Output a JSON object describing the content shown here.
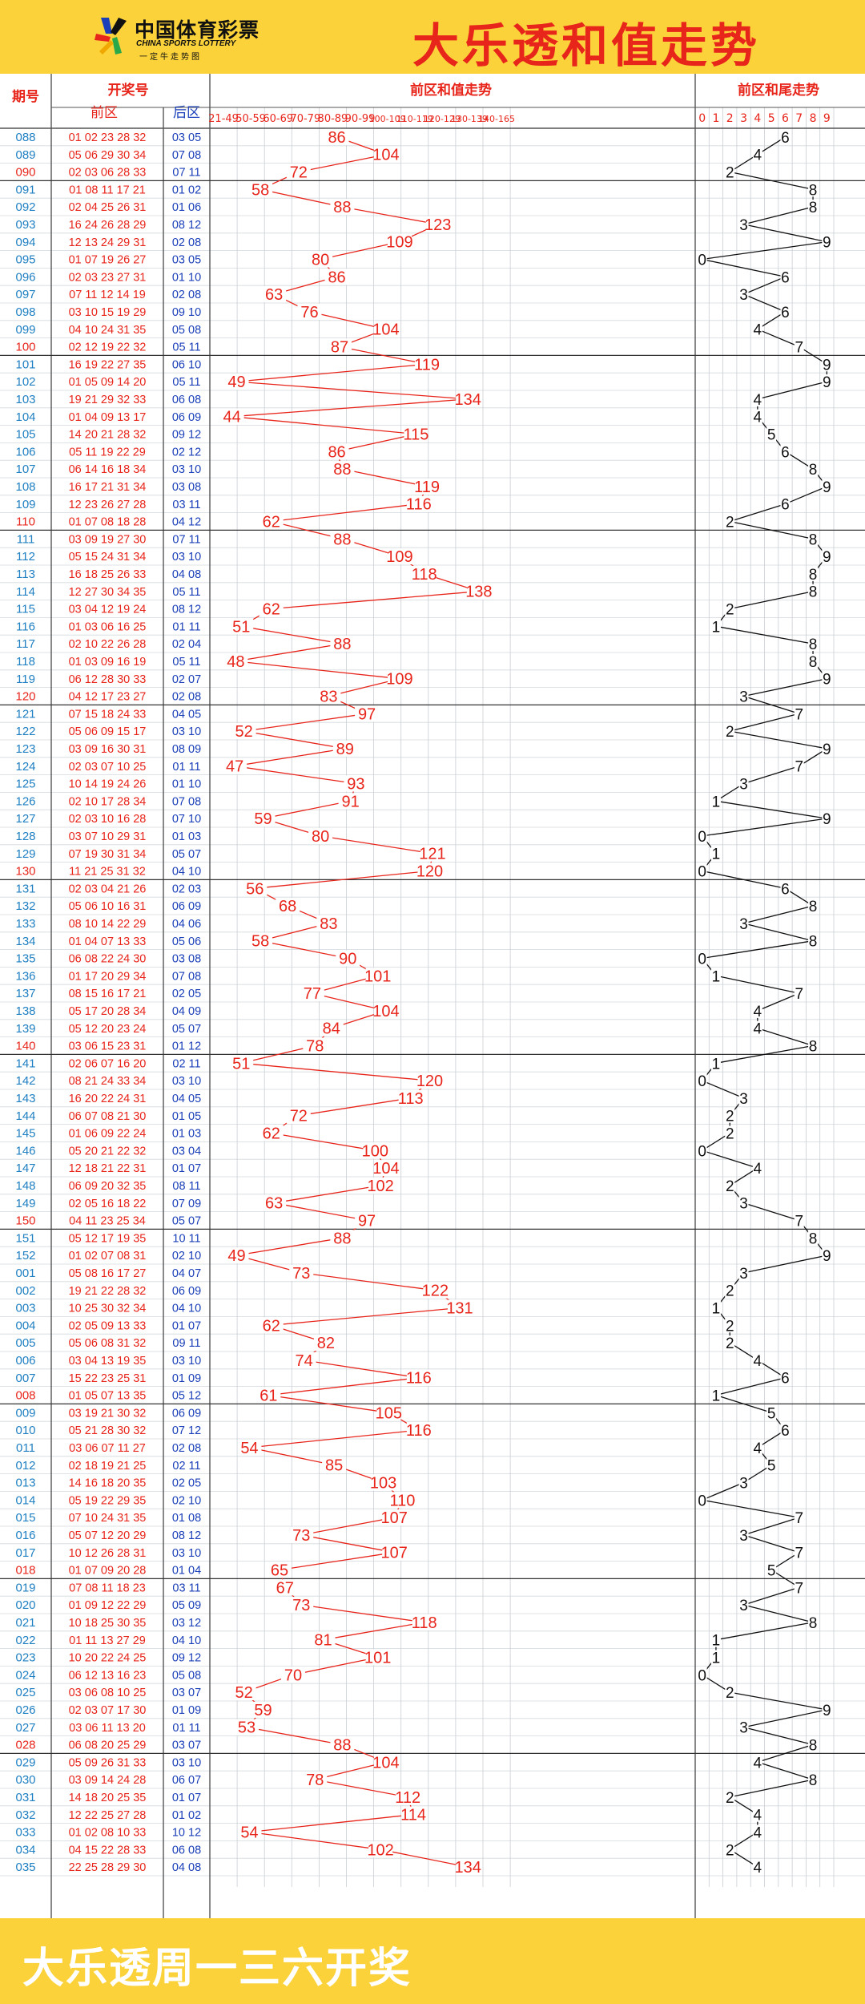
{
  "header": {
    "logo_cn": "中国体育彩票",
    "logo_en": "CHINA SPORTS LOTTERY",
    "logo_sub": "一定牛走势图",
    "title": "大乐透和值走势"
  },
  "columns": {
    "issue": "期号",
    "draw": "开奖号",
    "front": "前区",
    "back": "后区",
    "sum_trend": "前区和值走势",
    "tail_trend": "前区和尾走势"
  },
  "footer": {
    "text": "大乐透周一三六开奖"
  },
  "colors": {
    "header_bg": "#fbd23a",
    "title": "#e8251b",
    "issue": "#1e7fc2",
    "issue_alt": "#e8251b",
    "front": "#e8251b",
    "back": "#1a3fb8",
    "sum_line": "#e8251b",
    "tail_line": "#111111"
  },
  "chart_data": {
    "type": "line",
    "title": "大乐透和值走势",
    "bins": [
      "21-49",
      "50-59",
      "60-69",
      "70-79",
      "80-89",
      "90-99",
      "100-109",
      "110-119",
      "120-129",
      "130-139",
      "140-165"
    ],
    "tails": [
      "0",
      "1",
      "2",
      "3",
      "4",
      "5",
      "6",
      "7",
      "8",
      "9"
    ],
    "draws": [
      {
        "issue": "088",
        "front": "01 02 23 28 32",
        "back": "03 05",
        "sum": 86,
        "tail": 6
      },
      {
        "issue": "089",
        "front": "05 06 29 30 34",
        "back": "07 08",
        "sum": 104,
        "tail": 4
      },
      {
        "issue": "090",
        "front": "02 03 06 28 33",
        "back": "07 11",
        "sum": 72,
        "tail": 2
      },
      {
        "issue": "091",
        "front": "01 08 11 17 21",
        "back": "01 02",
        "sum": 58,
        "tail": 8
      },
      {
        "issue": "092",
        "front": "02 04 25 26 31",
        "back": "01 06",
        "sum": 88,
        "tail": 8
      },
      {
        "issue": "093",
        "front": "16 24 26 28 29",
        "back": "08 12",
        "sum": 123,
        "tail": 3
      },
      {
        "issue": "094",
        "front": "12 13 24 29 31",
        "back": "02 08",
        "sum": 109,
        "tail": 9
      },
      {
        "issue": "095",
        "front": "01 07 19 26 27",
        "back": "03 05",
        "sum": 80,
        "tail": 0
      },
      {
        "issue": "096",
        "front": "02 03 23 27 31",
        "back": "01 10",
        "sum": 86,
        "tail": 6
      },
      {
        "issue": "097",
        "front": "07 11 12 14 19",
        "back": "02 08",
        "sum": 63,
        "tail": 3
      },
      {
        "issue": "098",
        "front": "03 10 15 19 29",
        "back": "09 10",
        "sum": 76,
        "tail": 6
      },
      {
        "issue": "099",
        "front": "04 10 24 31 35",
        "back": "05 08",
        "sum": 104,
        "tail": 4
      },
      {
        "issue": "100",
        "front": "02 12 19 22 32",
        "back": "05 11",
        "sum": 87,
        "tail": 7
      },
      {
        "issue": "101",
        "front": "16 19 22 27 35",
        "back": "06 10",
        "sum": 119,
        "tail": 9
      },
      {
        "issue": "102",
        "front": "01 05 09 14 20",
        "back": "05 11",
        "sum": 49,
        "tail": 9
      },
      {
        "issue": "103",
        "front": "19 21 29 32 33",
        "back": "06 08",
        "sum": 134,
        "tail": 4
      },
      {
        "issue": "104",
        "front": "01 04 09 13 17",
        "back": "06 09",
        "sum": 44,
        "tail": 4
      },
      {
        "issue": "105",
        "front": "14 20 21 28 32",
        "back": "09 12",
        "sum": 115,
        "tail": 5
      },
      {
        "issue": "106",
        "front": "05 11 19 22 29",
        "back": "02 12",
        "sum": 86,
        "tail": 6
      },
      {
        "issue": "107",
        "front": "06 14 16 18 34",
        "back": "03 10",
        "sum": 88,
        "tail": 8
      },
      {
        "issue": "108",
        "front": "16 17 21 31 34",
        "back": "03 08",
        "sum": 119,
        "tail": 9
      },
      {
        "issue": "109",
        "front": "12 23 26 27 28",
        "back": "03 11",
        "sum": 116,
        "tail": 6
      },
      {
        "issue": "110",
        "front": "01 07 08 18 28",
        "back": "04 12",
        "sum": 62,
        "tail": 2
      },
      {
        "issue": "111",
        "front": "03 09 19 27 30",
        "back": "07 11",
        "sum": 88,
        "tail": 8
      },
      {
        "issue": "112",
        "front": "05 15 24 31 34",
        "back": "03 10",
        "sum": 109,
        "tail": 9
      },
      {
        "issue": "113",
        "front": "16 18 25 26 33",
        "back": "04 08",
        "sum": 118,
        "tail": 8
      },
      {
        "issue": "114",
        "front": "12 27 30 34 35",
        "back": "05 11",
        "sum": 138,
        "tail": 8
      },
      {
        "issue": "115",
        "front": "03 04 12 19 24",
        "back": "08 12",
        "sum": 62,
        "tail": 2
      },
      {
        "issue": "116",
        "front": "01 03 06 16 25",
        "back": "01 11",
        "sum": 51,
        "tail": 1
      },
      {
        "issue": "117",
        "front": "02 10 22 26 28",
        "back": "02 04",
        "sum": 88,
        "tail": 8
      },
      {
        "issue": "118",
        "front": "01 03 09 16 19",
        "back": "05 11",
        "sum": 48,
        "tail": 8
      },
      {
        "issue": "119",
        "front": "06 12 28 30 33",
        "back": "02 07",
        "sum": 109,
        "tail": 9
      },
      {
        "issue": "120",
        "front": "04 12 17 23 27",
        "back": "02 08",
        "sum": 83,
        "tail": 3
      },
      {
        "issue": "121",
        "front": "07 15 18 24 33",
        "back": "04 05",
        "sum": 97,
        "tail": 7
      },
      {
        "issue": "122",
        "front": "05 06 09 15 17",
        "back": "03 10",
        "sum": 52,
        "tail": 2
      },
      {
        "issue": "123",
        "front": "03 09 16 30 31",
        "back": "08 09",
        "sum": 89,
        "tail": 9
      },
      {
        "issue": "124",
        "front": "02 03 07 10 25",
        "back": "01 11",
        "sum": 47,
        "tail": 7
      },
      {
        "issue": "125",
        "front": "10 14 19 24 26",
        "back": "01 10",
        "sum": 93,
        "tail": 3
      },
      {
        "issue": "126",
        "front": "02 10 17 28 34",
        "back": "07 08",
        "sum": 91,
        "tail": 1
      },
      {
        "issue": "127",
        "front": "02 03 10 16 28",
        "back": "07 10",
        "sum": 59,
        "tail": 9
      },
      {
        "issue": "128",
        "front": "03 07 10 29 31",
        "back": "01 03",
        "sum": 80,
        "tail": 0
      },
      {
        "issue": "129",
        "front": "07 19 30 31 34",
        "back": "05 07",
        "sum": 121,
        "tail": 1
      },
      {
        "issue": "130",
        "front": "11 21 25 31 32",
        "back": "04 10",
        "sum": 120,
        "tail": 0
      },
      {
        "issue": "131",
        "front": "02 03 04 21 26",
        "back": "02 03",
        "sum": 56,
        "tail": 6
      },
      {
        "issue": "132",
        "front": "05 06 10 16 31",
        "back": "06 09",
        "sum": 68,
        "tail": 8
      },
      {
        "issue": "133",
        "front": "08 10 14 22 29",
        "back": "04 06",
        "sum": 83,
        "tail": 3
      },
      {
        "issue": "134",
        "front": "01 04 07 13 33",
        "back": "05 06",
        "sum": 58,
        "tail": 8
      },
      {
        "issue": "135",
        "front": "06 08 22 24 30",
        "back": "03 08",
        "sum": 90,
        "tail": 0
      },
      {
        "issue": "136",
        "front": "01 17 20 29 34",
        "back": "07 08",
        "sum": 101,
        "tail": 1
      },
      {
        "issue": "137",
        "front": "08 15 16 17 21",
        "back": "02 05",
        "sum": 77,
        "tail": 7
      },
      {
        "issue": "138",
        "front": "05 17 20 28 34",
        "back": "04 09",
        "sum": 104,
        "tail": 4
      },
      {
        "issue": "139",
        "front": "05 12 20 23 24",
        "back": "05 07",
        "sum": 84,
        "tail": 4
      },
      {
        "issue": "140",
        "front": "03 06 15 23 31",
        "back": "01 12",
        "sum": 78,
        "tail": 8
      },
      {
        "issue": "141",
        "front": "02 06 07 16 20",
        "back": "02 11",
        "sum": 51,
        "tail": 1
      },
      {
        "issue": "142",
        "front": "08 21 24 33 34",
        "back": "03 10",
        "sum": 120,
        "tail": 0
      },
      {
        "issue": "143",
        "front": "16 20 22 24 31",
        "back": "04 05",
        "sum": 113,
        "tail": 3
      },
      {
        "issue": "144",
        "front": "06 07 08 21 30",
        "back": "01 05",
        "sum": 72,
        "tail": 2
      },
      {
        "issue": "145",
        "front": "01 06 09 22 24",
        "back": "01 03",
        "sum": 62,
        "tail": 2
      },
      {
        "issue": "146",
        "front": "05 20 21 22 32",
        "back": "03 04",
        "sum": 100,
        "tail": 0
      },
      {
        "issue": "147",
        "front": "12 18 21 22 31",
        "back": "01 07",
        "sum": 104,
        "tail": 4
      },
      {
        "issue": "148",
        "front": "06 09 20 32 35",
        "back": "08 11",
        "sum": 102,
        "tail": 2
      },
      {
        "issue": "149",
        "front": "02 05 16 18 22",
        "back": "07 09",
        "sum": 63,
        "tail": 3
      },
      {
        "issue": "150",
        "front": "04 11 23 25 34",
        "back": "05 07",
        "sum": 97,
        "tail": 7
      },
      {
        "issue": "151",
        "front": "05 12 17 19 35",
        "back": "10 11",
        "sum": 88,
        "tail": 8
      },
      {
        "issue": "152",
        "front": "01 02 07 08 31",
        "back": "02 10",
        "sum": 49,
        "tail": 9
      },
      {
        "issue": "001",
        "front": "05 08 16 17 27",
        "back": "04 07",
        "sum": 73,
        "tail": 3
      },
      {
        "issue": "002",
        "front": "19 21 22 28 32",
        "back": "06 09",
        "sum": 122,
        "tail": 2
      },
      {
        "issue": "003",
        "front": "10 25 30 32 34",
        "back": "04 10",
        "sum": 131,
        "tail": 1
      },
      {
        "issue": "004",
        "front": "02 05 09 13 33",
        "back": "01 07",
        "sum": 62,
        "tail": 2
      },
      {
        "issue": "005",
        "front": "05 06 08 31 32",
        "back": "09 11",
        "sum": 82,
        "tail": 2
      },
      {
        "issue": "006",
        "front": "03 04 13 19 35",
        "back": "03 10",
        "sum": 74,
        "tail": 4
      },
      {
        "issue": "007",
        "front": "15 22 23 25 31",
        "back": "01 09",
        "sum": 116,
        "tail": 6
      },
      {
        "issue": "008",
        "front": "01 05 07 13 35",
        "back": "05 12",
        "sum": 61,
        "tail": 1
      },
      {
        "issue": "009",
        "front": "03 19 21 30 32",
        "back": "06 09",
        "sum": 105,
        "tail": 5
      },
      {
        "issue": "010",
        "front": "05 21 28 30 32",
        "back": "07 12",
        "sum": 116,
        "tail": 6
      },
      {
        "issue": "011",
        "front": "03 06 07 11 27",
        "back": "02 08",
        "sum": 54,
        "tail": 4
      },
      {
        "issue": "012",
        "front": "02 18 19 21 25",
        "back": "02 11",
        "sum": 85,
        "tail": 5
      },
      {
        "issue": "013",
        "front": "14 16 18 20 35",
        "back": "02 05",
        "sum": 103,
        "tail": 3
      },
      {
        "issue": "014",
        "front": "05 19 22 29 35",
        "back": "02 10",
        "sum": 110,
        "tail": 0
      },
      {
        "issue": "015",
        "front": "07 10 24 31 35",
        "back": "01 08",
        "sum": 107,
        "tail": 7
      },
      {
        "issue": "016",
        "front": "05 07 12 20 29",
        "back": "08 12",
        "sum": 73,
        "tail": 3
      },
      {
        "issue": "017",
        "front": "10 12 26 28 31",
        "back": "03 10",
        "sum": 107,
        "tail": 7
      },
      {
        "issue": "018",
        "front": "01 07 09 20 28",
        "back": "01 04",
        "sum": 65,
        "tail": 5
      },
      {
        "issue": "019",
        "front": "07 08 11 18 23",
        "back": "03 11",
        "sum": 67,
        "tail": 7
      },
      {
        "issue": "020",
        "front": "01 09 12 22 29",
        "back": "05 09",
        "sum": 73,
        "tail": 3
      },
      {
        "issue": "021",
        "front": "10 18 25 30 35",
        "back": "03 12",
        "sum": 118,
        "tail": 8
      },
      {
        "issue": "022",
        "front": "01 11 13 27 29",
        "back": "04 10",
        "sum": 81,
        "tail": 1
      },
      {
        "issue": "023",
        "front": "10 20 22 24 25",
        "back": "09 12",
        "sum": 101,
        "tail": 1
      },
      {
        "issue": "024",
        "front": "06 12 13 16 23",
        "back": "05 08",
        "sum": 70,
        "tail": 0
      },
      {
        "issue": "025",
        "front": "03 06 08 10 25",
        "back": "03 07",
        "sum": 52,
        "tail": 2
      },
      {
        "issue": "026",
        "front": "02 03 07 17 30",
        "back": "01 09",
        "sum": 59,
        "tail": 9
      },
      {
        "issue": "027",
        "front": "03 06 11 13 20",
        "back": "01 11",
        "sum": 53,
        "tail": 3
      },
      {
        "issue": "028",
        "front": "06 08 20 25 29",
        "back": "03 07",
        "sum": 88,
        "tail": 8
      },
      {
        "issue": "029",
        "front": "05 09 26 31 33",
        "back": "03 10",
        "sum": 104,
        "tail": 4
      },
      {
        "issue": "030",
        "front": "03 09 14 24 28",
        "back": "06 07",
        "sum": 78,
        "tail": 8
      },
      {
        "issue": "031",
        "front": "14 18 20 25 35",
        "back": "01 07",
        "sum": 112,
        "tail": 2
      },
      {
        "issue": "032",
        "front": "12 22 25 27 28",
        "back": "01 02",
        "sum": 114,
        "tail": 4
      },
      {
        "issue": "033",
        "front": "01 02 08 10 33",
        "back": "10 12",
        "sum": 54,
        "tail": 4
      },
      {
        "issue": "034",
        "front": "04 15 22 28 33",
        "back": "06 08",
        "sum": 102,
        "tail": 2
      },
      {
        "issue": "035",
        "front": "22 25 28 29 30",
        "back": "04 08",
        "sum": 134,
        "tail": 4
      }
    ]
  }
}
